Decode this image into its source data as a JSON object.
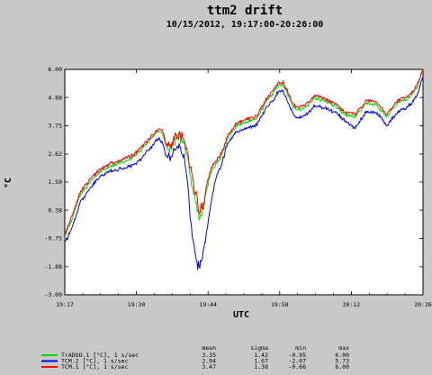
{
  "chart_data": {
    "type": "line",
    "title": "ttm2 drift",
    "subtitle": "10/15/2012, 19:17:00-20:26:00",
    "xlabel": "UTC",
    "ylabel": "°C",
    "ylim": [
      -3.0,
      6.0
    ],
    "x_ticks": [
      "19:17",
      "19:30",
      "19:44",
      "19:58",
      "20:12",
      "20:26"
    ],
    "y_ticks": [
      "6.00",
      "4.88",
      "3.75",
      "2.62",
      "1.50",
      "0.38",
      "-0.75",
      "-1.88",
      "-3.00"
    ],
    "x_range_minutes": [
      0,
      69
    ],
    "keyframes_x_minutes": [
      0,
      0.5,
      1.5,
      3,
      5,
      7,
      9,
      11,
      13,
      14,
      15,
      16,
      17,
      18,
      18.8,
      19.5,
      20.2,
      21,
      22,
      23,
      23.7,
      24.5,
      25.2,
      26,
      26.8,
      27.5,
      28.2,
      29,
      30,
      30.8,
      31.5,
      33,
      35,
      37,
      38,
      39,
      40,
      41,
      42,
      43,
      44,
      45,
      46,
      47,
      48,
      50,
      52,
      54,
      56,
      58,
      60,
      61,
      62,
      64,
      66,
      67,
      68,
      69
    ],
    "stat_headers": [
      "mean",
      "sigma",
      "min",
      "max"
    ],
    "series": [
      {
        "name": "TrADOO.1 [°C], 1 s/sec",
        "color": "#00dd00",
        "mean": "3.35",
        "sigma": "1.42",
        "min": "-0.95",
        "max": "6.00",
        "keyframes_y": [
          -0.75,
          -0.4,
          0.1,
          1.0,
          1.55,
          1.95,
          2.15,
          2.3,
          2.45,
          2.65,
          2.85,
          3.1,
          3.3,
          3.55,
          3.45,
          2.95,
          2.8,
          3.1,
          3.35,
          3.05,
          2.4,
          1.4,
          0.7,
          0.1,
          0.55,
          1.35,
          1.9,
          2.2,
          2.45,
          2.9,
          3.3,
          3.75,
          3.9,
          4.05,
          4.4,
          4.8,
          5.0,
          5.35,
          5.4,
          5.0,
          4.5,
          4.35,
          4.45,
          4.6,
          4.85,
          4.75,
          4.55,
          4.2,
          4.1,
          4.65,
          4.6,
          4.35,
          4.1,
          4.65,
          4.85,
          5.0,
          5.35,
          6.0
        ]
      },
      {
        "name": "TCM.2 [°C], 1 s/sec",
        "color": "#0000ee",
        "mean": "2.94",
        "sigma": "1.67",
        "min": "-2.07",
        "max": "5.73",
        "keyframes_y": [
          -0.9,
          -0.75,
          -0.25,
          0.7,
          1.3,
          1.75,
          1.95,
          2.05,
          2.15,
          2.3,
          2.5,
          2.75,
          3.0,
          3.25,
          3.1,
          2.55,
          2.45,
          2.75,
          2.95,
          2.5,
          1.35,
          -0.6,
          -1.5,
          -2.0,
          -1.2,
          -0.3,
          0.7,
          1.6,
          2.1,
          2.65,
          3.05,
          3.5,
          3.65,
          3.8,
          4.15,
          4.55,
          4.75,
          5.1,
          5.15,
          4.7,
          4.2,
          4.05,
          4.15,
          4.3,
          4.55,
          4.45,
          4.3,
          3.95,
          3.65,
          4.3,
          4.3,
          4.05,
          3.75,
          4.3,
          4.5,
          4.7,
          5.05,
          5.75
        ]
      },
      {
        "name": "TCM.1 [°C], 1 s/sec",
        "color": "#ff0000",
        "mean": "3.47",
        "sigma": "1.38",
        "min": "-0.66",
        "max": "6.00",
        "keyframes_y": [
          -0.6,
          -0.3,
          0.2,
          1.1,
          1.65,
          2.05,
          2.25,
          2.4,
          2.55,
          2.75,
          2.95,
          3.2,
          3.4,
          3.65,
          3.55,
          3.05,
          2.9,
          3.2,
          3.45,
          3.2,
          2.6,
          1.7,
          1.1,
          0.3,
          0.75,
          1.55,
          2.05,
          2.35,
          2.6,
          3.0,
          3.4,
          3.85,
          4.0,
          4.15,
          4.5,
          4.9,
          5.1,
          5.45,
          5.5,
          5.1,
          4.6,
          4.45,
          4.55,
          4.7,
          4.95,
          4.85,
          4.65,
          4.3,
          4.2,
          4.75,
          4.7,
          4.45,
          4.2,
          4.75,
          4.95,
          5.1,
          5.45,
          6.0
        ]
      }
    ]
  }
}
